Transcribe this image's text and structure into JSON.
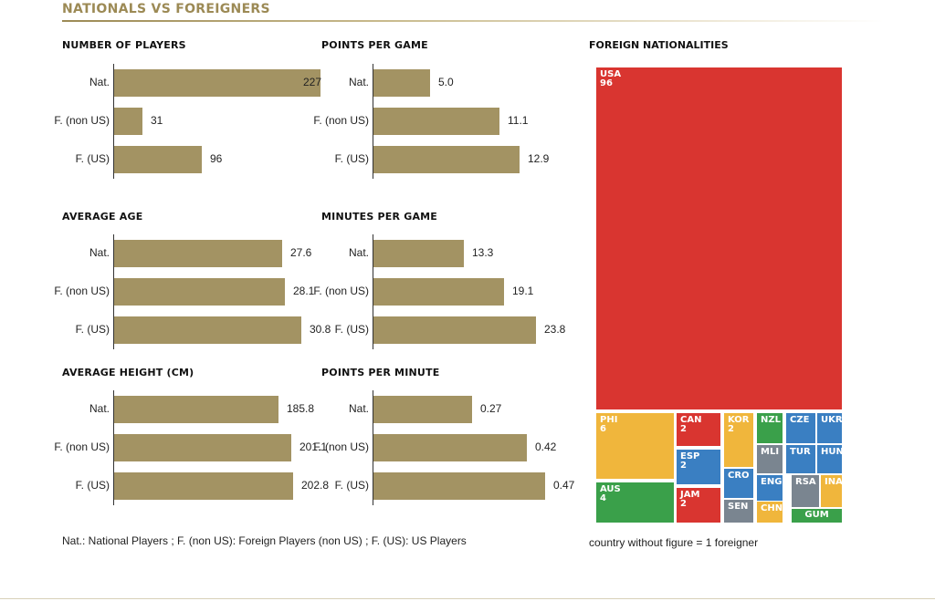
{
  "header": {
    "title": "NATIONALS VS FOREIGNERS"
  },
  "chart_data": [
    {
      "type": "bar",
      "title": "NUMBER OF PLAYERS",
      "categories": [
        "Nat.",
        "F. (non US)",
        "F. (US)"
      ],
      "values": [
        227,
        31,
        96
      ],
      "value_labels": [
        "227",
        "31",
        "96"
      ],
      "xlim": [
        0,
        227
      ]
    },
    {
      "type": "bar",
      "title": "POINTS PER GAME",
      "categories": [
        "Nat.",
        "F. (non US)",
        "F. (US)"
      ],
      "values": [
        5.0,
        11.1,
        12.9
      ],
      "value_labels": [
        "5.0",
        "11.1",
        "12.9"
      ],
      "xlim": [
        0,
        15.5
      ]
    },
    {
      "type": "bar",
      "title": "AVERAGE AGE",
      "categories": [
        "Nat.",
        "F. (non US)",
        "F. (US)"
      ],
      "values": [
        27.6,
        28.1,
        30.8
      ],
      "value_labels": [
        "27.6",
        "28.1",
        "30.8"
      ],
      "xlim": [
        0,
        41
      ]
    },
    {
      "type": "bar",
      "title": "MINUTES PER GAME",
      "categories": [
        "Nat.",
        "F. (non US)",
        "F. (US)"
      ],
      "values": [
        13.3,
        19.1,
        23.8
      ],
      "value_labels": [
        "13.3",
        "19.1",
        "23.8"
      ],
      "xlim": [
        0,
        28.7
      ]
    },
    {
      "type": "bar",
      "title": "AVERAGE HEIGHT (CM)",
      "categories": [
        "Nat.",
        "F. (non US)",
        "F. (US)"
      ],
      "values": [
        185.8,
        201.1,
        202.8
      ],
      "value_labels": [
        "185.8",
        "201.1",
        "202.8"
      ],
      "xlim": [
        0,
        270
      ]
    },
    {
      "type": "bar",
      "title": "POINTS PER MINUTE",
      "categories": [
        "Nat.",
        "F. (non US)",
        "F. (US)"
      ],
      "values": [
        0.27,
        0.42,
        0.47
      ],
      "value_labels": [
        "0.27",
        "0.42",
        "0.47"
      ],
      "xlim": [
        0,
        0.55
      ]
    },
    {
      "type": "treemap",
      "title": "FOREIGN NATIONALITIES",
      "items": [
        {
          "code": "USA",
          "count": "96",
          "color": "#d93530"
        },
        {
          "code": "PHI",
          "count": "6",
          "color": "#f0b63c"
        },
        {
          "code": "AUS",
          "count": "4",
          "color": "#3aa04a"
        },
        {
          "code": "CAN",
          "count": "2",
          "color": "#d93530"
        },
        {
          "code": "ESP",
          "count": "2",
          "color": "#3a7fc2"
        },
        {
          "code": "JAM",
          "count": "2",
          "color": "#d93530"
        },
        {
          "code": "KOR",
          "count": "2",
          "color": "#f0b63c"
        },
        {
          "code": "CRO",
          "count": "",
          "color": "#3a7fc2"
        },
        {
          "code": "SEN",
          "count": "",
          "color": "#7a8590"
        },
        {
          "code": "NZL",
          "count": "",
          "color": "#3aa04a"
        },
        {
          "code": "MLI",
          "count": "",
          "color": "#7a8590"
        },
        {
          "code": "ENG",
          "count": "",
          "color": "#3a7fc2"
        },
        {
          "code": "CHN",
          "count": "",
          "color": "#f0b63c"
        },
        {
          "code": "CZE",
          "count": "",
          "color": "#3a7fc2"
        },
        {
          "code": "TUR",
          "count": "",
          "color": "#3a7fc2"
        },
        {
          "code": "RSA",
          "count": "",
          "color": "#7a8590"
        },
        {
          "code": "UKR",
          "count": "",
          "color": "#3a7fc2"
        },
        {
          "code": "HUN",
          "count": "",
          "color": "#3a7fc2"
        },
        {
          "code": "INA",
          "count": "",
          "color": "#f0b63c"
        },
        {
          "code": "GUM",
          "count": "",
          "color": "#3aa04a"
        }
      ]
    }
  ],
  "footnote": "Nat.: National Players ; F. (non US): Foreign Players (non US) ; F. (US): US Players",
  "treemap_note": "country without figure = 1 foreigner"
}
